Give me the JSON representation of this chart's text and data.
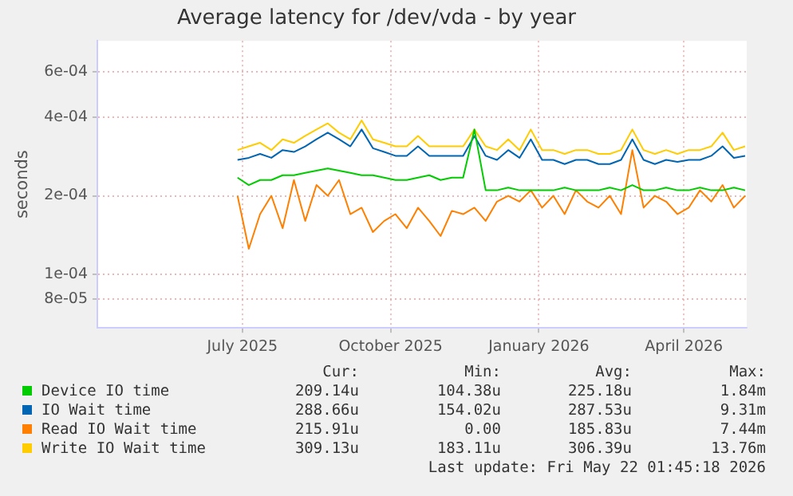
{
  "chart_data": {
    "type": "line",
    "title": "Average latency for /dev/vda - by year",
    "ylabel": "seconds",
    "log": "y",
    "grid": true,
    "legend": "bottom",
    "marker": "none",
    "xlim": [
      "2025-04-02",
      "2026-05-10"
    ],
    "xticks": [
      {
        "value": "2025-07-01",
        "label": "July 2025"
      },
      {
        "value": "2025-10-01",
        "label": "October 2025"
      },
      {
        "value": "2026-01-01",
        "label": "January 2026"
      },
      {
        "value": "2026-04-01",
        "label": "April 2026"
      }
    ],
    "ylim": [
      6.2e-05,
      0.00079
    ],
    "yticks": [
      {
        "value": 8e-05,
        "label": "8e-05"
      },
      {
        "value": 0.0001,
        "label": "1e-04"
      },
      {
        "value": 0.0002,
        "label": "2e-04"
      },
      {
        "value": 0.0004,
        "label": "4e-04"
      },
      {
        "value": 0.0006,
        "label": "6e-04"
      }
    ],
    "x": [
      "2025-06-28",
      "2025-07-05",
      "2025-07-12",
      "2025-07-19",
      "2025-07-26",
      "2025-08-02",
      "2025-08-09",
      "2025-08-16",
      "2025-08-23",
      "2025-08-30",
      "2025-09-06",
      "2025-09-13",
      "2025-09-20",
      "2025-09-27",
      "2025-10-04",
      "2025-10-11",
      "2025-10-18",
      "2025-10-25",
      "2025-11-01",
      "2025-11-08",
      "2025-11-15",
      "2025-11-22",
      "2025-11-29",
      "2025-12-06",
      "2025-12-13",
      "2025-12-20",
      "2025-12-27",
      "2026-01-03",
      "2026-01-10",
      "2026-01-17",
      "2026-01-24",
      "2026-01-31",
      "2026-02-07",
      "2026-02-14",
      "2026-02-21",
      "2026-02-28",
      "2026-03-07",
      "2026-03-14",
      "2026-03-21",
      "2026-03-28",
      "2026-04-04",
      "2026-04-11",
      "2026-04-18",
      "2026-04-25",
      "2026-05-02",
      "2026-05-09"
    ],
    "series": [
      {
        "name": "Device IO time",
        "color": "#00cc00",
        "values": [
          0.000235,
          0.00022,
          0.00023,
          0.00023,
          0.00024,
          0.00024,
          0.000245,
          0.00025,
          0.000255,
          0.00025,
          0.000245,
          0.00024,
          0.00024,
          0.000235,
          0.00023,
          0.00023,
          0.000235,
          0.00024,
          0.00023,
          0.000235,
          0.000235,
          0.00036,
          0.00021,
          0.00021,
          0.000215,
          0.00021,
          0.00021,
          0.00021,
          0.00021,
          0.000215,
          0.00021,
          0.00021,
          0.00021,
          0.000215,
          0.00021,
          0.00022,
          0.00021,
          0.00021,
          0.000215,
          0.00021,
          0.00021,
          0.000215,
          0.00021,
          0.00021,
          0.000215,
          0.00021
        ]
      },
      {
        "name": "IO Wait time",
        "color": "#0066b3",
        "values": [
          0.000275,
          0.00028,
          0.00029,
          0.00028,
          0.0003,
          0.000295,
          0.00031,
          0.00033,
          0.00035,
          0.00033,
          0.00031,
          0.00036,
          0.000305,
          0.000295,
          0.000285,
          0.000285,
          0.00031,
          0.000285,
          0.000285,
          0.000285,
          0.000285,
          0.00034,
          0.000285,
          0.000275,
          0.0003,
          0.00028,
          0.00033,
          0.000275,
          0.000275,
          0.000265,
          0.000275,
          0.000275,
          0.000265,
          0.000265,
          0.000275,
          0.00033,
          0.000275,
          0.000265,
          0.000275,
          0.00027,
          0.000275,
          0.000275,
          0.000285,
          0.00031,
          0.00028,
          0.000285
        ]
      },
      {
        "name": "Read IO Wait time",
        "color": "#ff8000",
        "values": [
          0.0002,
          0.000125,
          0.00017,
          0.0002,
          0.00015,
          0.00023,
          0.00016,
          0.00022,
          0.0002,
          0.00023,
          0.00017,
          0.00018,
          0.000145,
          0.00016,
          0.00017,
          0.00015,
          0.00018,
          0.00016,
          0.00014,
          0.000175,
          0.00017,
          0.00018,
          0.00016,
          0.00019,
          0.0002,
          0.00019,
          0.00021,
          0.00018,
          0.0002,
          0.00017,
          0.00021,
          0.00019,
          0.00018,
          0.0002,
          0.00017,
          0.0003,
          0.00018,
          0.0002,
          0.00019,
          0.00017,
          0.00018,
          0.00021,
          0.00019,
          0.00022,
          0.00018,
          0.0002
        ]
      },
      {
        "name": "Write IO Wait time",
        "color": "#ffcc00",
        "values": [
          0.0003,
          0.00031,
          0.00032,
          0.0003,
          0.00033,
          0.00032,
          0.00034,
          0.00036,
          0.00038,
          0.00035,
          0.00033,
          0.00039,
          0.00033,
          0.00032,
          0.00031,
          0.00031,
          0.00034,
          0.00031,
          0.00031,
          0.00031,
          0.00031,
          0.00036,
          0.00031,
          0.0003,
          0.00033,
          0.0003,
          0.00036,
          0.0003,
          0.0003,
          0.00029,
          0.0003,
          0.0003,
          0.00029,
          0.00029,
          0.0003,
          0.00036,
          0.0003,
          0.00029,
          0.0003,
          0.00029,
          0.0003,
          0.0003,
          0.00031,
          0.00035,
          0.0003,
          0.00031
        ]
      }
    ],
    "annotations": [
      "Cur:",
      "Min:",
      "Avg:",
      "Max:",
      "209.14u",
      "104.38u",
      "225.18u",
      "1.84m",
      "288.66u",
      "154.02u",
      "287.53u",
      "9.31m",
      "215.91u",
      "0.00",
      "185.83u",
      "7.44m",
      "309.13u",
      "183.11u",
      "306.39u",
      "13.76m",
      "Last update: Fri May 22 01:45:18 2026"
    ]
  }
}
